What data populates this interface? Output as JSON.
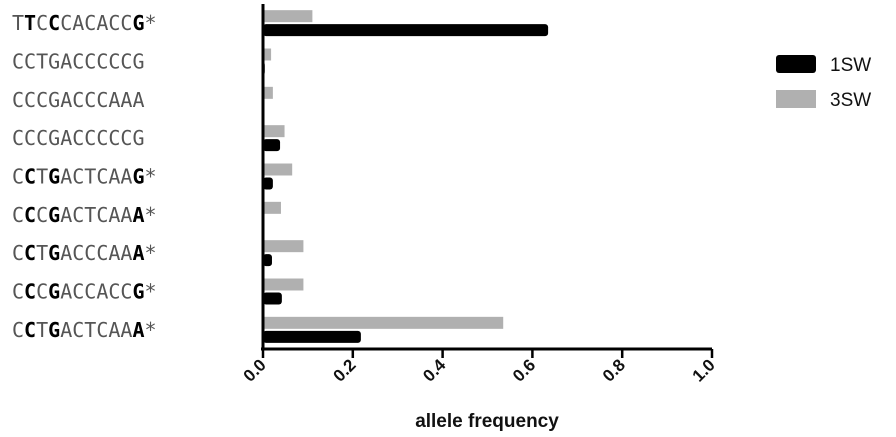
{
  "chart_data": {
    "type": "bar",
    "orientation": "horizontal",
    "categories": [
      "TTCCCACACCG*",
      "CCTGACCCCCG",
      "CCCGACCCAAA",
      "CCCGACCCCCG",
      "CCTGACTCAAG*",
      "CCCGACTCAAA*",
      "CCTGACCCAAA*",
      "CCCGACCACCG*",
      "CCTGACTCAAA*"
    ],
    "bold_positions": [
      [
        1,
        3,
        10
      ],
      [],
      [],
      [],
      [
        1,
        3,
        10
      ],
      [
        1,
        3,
        10
      ],
      [
        1,
        3,
        10
      ],
      [
        1,
        3,
        10
      ],
      [
        1,
        3,
        10
      ]
    ],
    "series": [
      {
        "name": "1SW",
        "color": "#000000",
        "values": [
          0.635,
          0.004,
          0.0,
          0.038,
          0.022,
          0.0,
          0.02,
          0.042,
          0.218
        ]
      },
      {
        "name": "3SW",
        "color": "#b0b0b0",
        "values": [
          0.11,
          0.018,
          0.022,
          0.048,
          0.065,
          0.04,
          0.09,
          0.09,
          0.535
        ]
      }
    ],
    "xlabel": "allele frequency",
    "xlim": [
      0,
      1.0
    ],
    "xticks": [
      "0.0",
      "0.2",
      "0.4",
      "0.6",
      "0.8",
      "1.0"
    ],
    "grid": false,
    "legend_position": "top-right"
  }
}
